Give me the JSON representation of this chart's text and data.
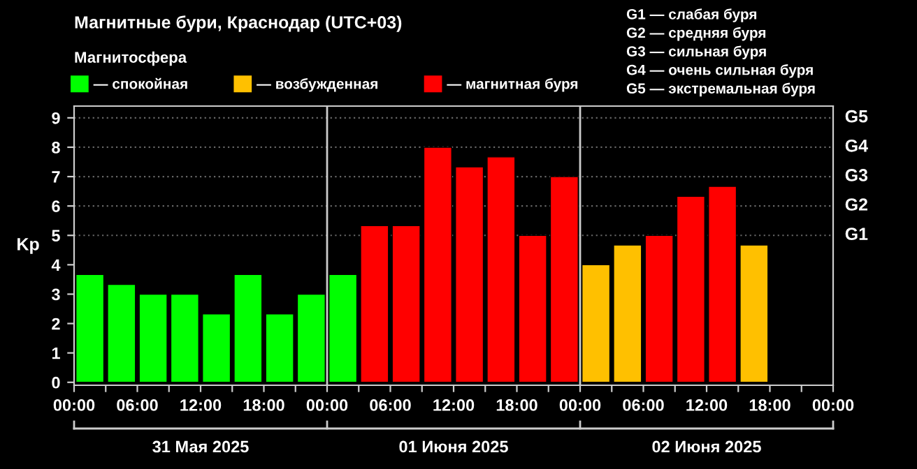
{
  "chart_data": {
    "type": "bar",
    "title": "Магнитные бури, Краснодар (UTC+03)",
    "ylabel": "Kp",
    "legend_title": "Магнитосфера",
    "legend": "top",
    "x": [
      "2025-05-31T01:30",
      "2025-05-31T04:30",
      "2025-05-31T07:30",
      "2025-05-31T10:30",
      "2025-05-31T13:30",
      "2025-05-31T16:30",
      "2025-05-31T19:30",
      "2025-05-31T22:30",
      "2025-06-01T01:30",
      "2025-06-01T04:30",
      "2025-06-01T07:30",
      "2025-06-01T10:30",
      "2025-06-01T13:30",
      "2025-06-01T16:30",
      "2025-06-01T19:30",
      "2025-06-01T22:30",
      "2025-06-02T01:30",
      "2025-06-02T04:30",
      "2025-06-02T07:30",
      "2025-06-02T10:30",
      "2025-06-02T13:30",
      "2025-06-02T16:30"
    ],
    "series": [
      {
        "name": "— спокойная",
        "color": "#00ff00",
        "values": [
          3.67,
          3.33,
          3,
          3,
          2.33,
          3.67,
          2.33,
          3,
          3.67,
          null,
          null,
          null,
          null,
          null,
          null,
          null,
          null,
          null,
          null,
          null,
          null,
          null
        ]
      },
      {
        "name": "— возбужденная",
        "color": "#ffc000",
        "values": [
          null,
          null,
          null,
          null,
          null,
          null,
          null,
          null,
          null,
          null,
          null,
          null,
          null,
          null,
          null,
          null,
          4,
          4.67,
          null,
          null,
          null,
          4.67
        ]
      },
      {
        "name": "— магнитная буря",
        "color": "#ff0000",
        "values": [
          null,
          null,
          null,
          null,
          null,
          null,
          null,
          null,
          null,
          5.33,
          5.33,
          8,
          7.33,
          7.67,
          5,
          7,
          null,
          null,
          5,
          6.33,
          6.67,
          null
        ]
      }
    ],
    "xlim": [
      "2025-05-31T00:00",
      "2025-06-03T00:00"
    ],
    "xticks": [
      {
        "value": "2025-05-31T00:00",
        "label": "00:00"
      },
      {
        "value": "2025-05-31T03:00",
        "label": null
      },
      {
        "value": "2025-05-31T06:00",
        "label": "06:00"
      },
      {
        "value": "2025-05-31T09:00",
        "label": null
      },
      {
        "value": "2025-05-31T12:00",
        "label": "12:00"
      },
      {
        "value": "2025-05-31T15:00",
        "label": null
      },
      {
        "value": "2025-05-31T18:00",
        "label": "18:00"
      },
      {
        "value": "2025-05-31T21:00",
        "label": null
      },
      {
        "value": "2025-06-01T00:00",
        "label": "00:00"
      },
      {
        "value": "2025-06-01T03:00",
        "label": null
      },
      {
        "value": "2025-06-01T06:00",
        "label": "06:00"
      },
      {
        "value": "2025-06-01T09:00",
        "label": null
      },
      {
        "value": "2025-06-01T12:00",
        "label": "12:00"
      },
      {
        "value": "2025-06-01T15:00",
        "label": null
      },
      {
        "value": "2025-06-01T18:00",
        "label": "18:00"
      },
      {
        "value": "2025-06-01T21:00",
        "label": null
      },
      {
        "value": "2025-06-02T00:00",
        "label": "00:00"
      },
      {
        "value": "2025-06-02T03:00",
        "label": null
      },
      {
        "value": "2025-06-02T06:00",
        "label": "06:00"
      },
      {
        "value": "2025-06-02T09:00",
        "label": null
      },
      {
        "value": "2025-06-02T12:00",
        "label": "12:00"
      },
      {
        "value": "2025-06-02T15:00",
        "label": null
      },
      {
        "value": "2025-06-02T18:00",
        "label": "18:00"
      },
      {
        "value": "2025-06-02T21:00",
        "label": null
      },
      {
        "value": "2025-06-03T00:00",
        "label": "00:00"
      }
    ],
    "ylim": [
      -0.1,
      9.4
    ],
    "yticks": [
      0,
      1,
      2,
      3,
      4,
      5,
      6,
      7,
      8,
      9
    ],
    "ref_lines": [
      {
        "axis": "x",
        "value": "2025-06-01T00:00",
        "color": "#cccccc"
      },
      {
        "axis": "x",
        "value": "2025-06-02T00:00",
        "color": "#cccccc"
      },
      {
        "axis": "y",
        "value": 5,
        "label": "G1",
        "line_style": "dotted",
        "color": "#666666"
      },
      {
        "axis": "y",
        "value": 6,
        "label": "G2",
        "line_style": "dotted",
        "color": "#666666"
      },
      {
        "axis": "y",
        "value": 7,
        "label": "G3",
        "line_style": "dotted",
        "color": "#666666"
      },
      {
        "axis": "y",
        "value": 8,
        "label": "G4",
        "line_style": "dotted",
        "color": "#666666"
      },
      {
        "axis": "y",
        "value": 9,
        "label": "G5",
        "line_style": "dotted",
        "color": "#666666"
      }
    ],
    "annotations": [
      "G1 — слабая буря",
      "G2 — средняя буря",
      "G3 — сильная буря",
      "G4 — очень сильная буря",
      "G5 — экстремальная буря",
      "31 Мая 2025",
      "01 Июня 2025",
      "02 Июня 2025"
    ]
  }
}
